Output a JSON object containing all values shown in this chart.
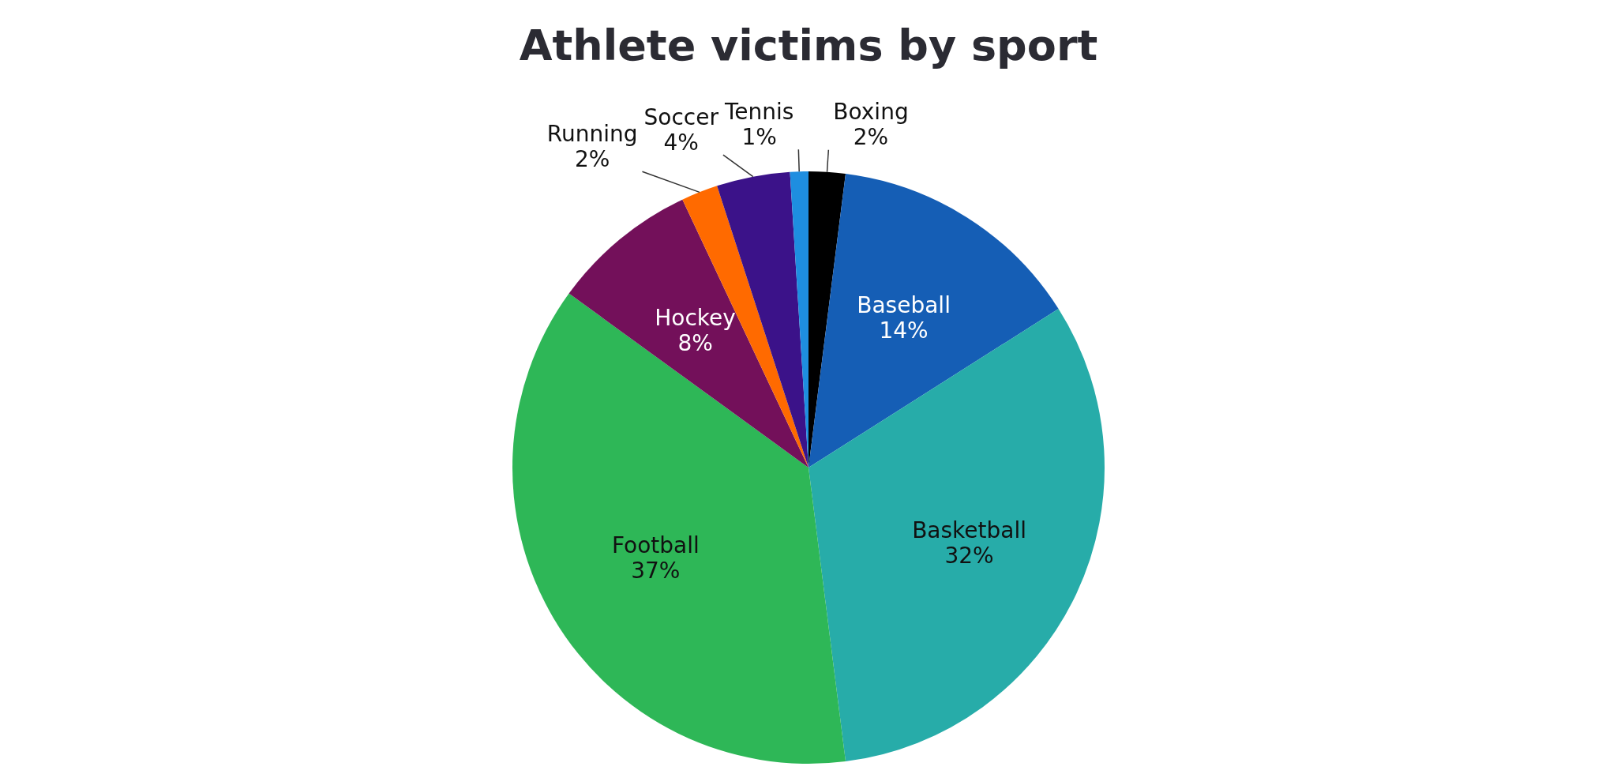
{
  "chart_data": {
    "type": "pie",
    "title": "Athlete victims by sport",
    "categories": [
      "Boxing",
      "Baseball",
      "Basketball",
      "Football",
      "Hockey",
      "Running",
      "Soccer",
      "Tennis"
    ],
    "values": [
      2,
      14,
      32,
      37,
      8,
      2,
      4,
      1
    ],
    "colors": [
      "#000000",
      "#155eb5",
      "#27aca9",
      "#2eb757",
      "#73105a",
      "#ff6a00",
      "#3b1289",
      "#1e8ee0"
    ],
    "value_labels": [
      "2%",
      "14%",
      "32%",
      "37%",
      "8%",
      "2%",
      "4%",
      "1%"
    ],
    "legend": false
  }
}
